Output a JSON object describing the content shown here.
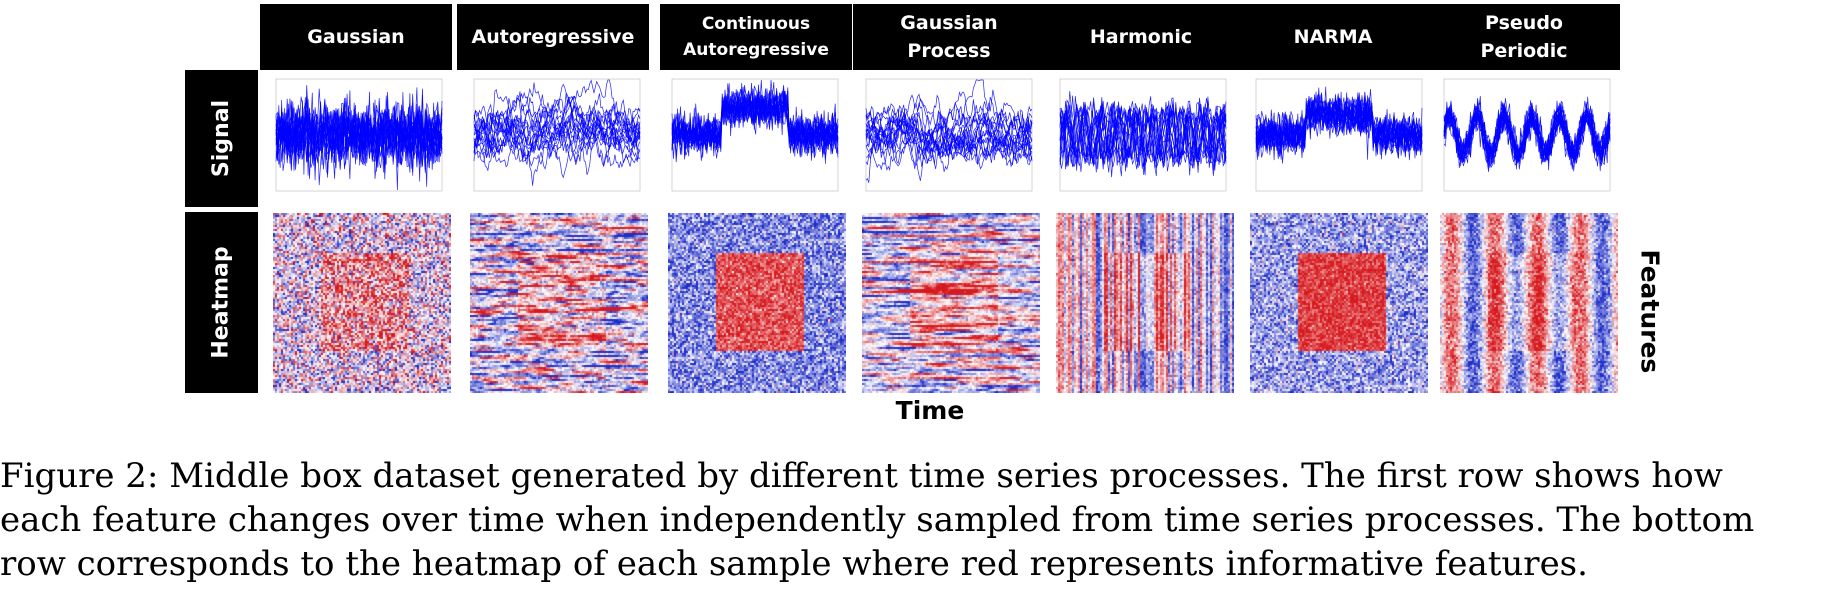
{
  "figure": {
    "columns": [
      {
        "label": "Gaussian",
        "pattern": "gaussian"
      },
      {
        "label": "Autoregressive",
        "pattern": "autoregressive"
      },
      {
        "label": "Continuous\nAutoregressive",
        "pattern": "car"
      },
      {
        "label": "Gaussian\nProcess",
        "pattern": "gp"
      },
      {
        "label": "Harmonic",
        "pattern": "harmonic"
      },
      {
        "label": "NARMA",
        "pattern": "narma"
      },
      {
        "label": "Pseudo\nPeriodic",
        "pattern": "pseudo"
      }
    ],
    "rows": [
      "Signal",
      "Heatmap"
    ],
    "x_axis_label": "Time",
    "y_axis_label": "Features",
    "colors": {
      "signal": "#0000ff",
      "informative": "#e41a1c",
      "uninformative": "#2233cc",
      "label_bg": "#000000"
    }
  },
  "caption": {
    "lines": [
      "Figure 2: Middle box dataset generated by different time series processes. The first row shows how",
      "each feature changes over time when independently sampled from time series processes. The bottom",
      "row corresponds to the heatmap of each sample where red represents informative features."
    ]
  }
}
